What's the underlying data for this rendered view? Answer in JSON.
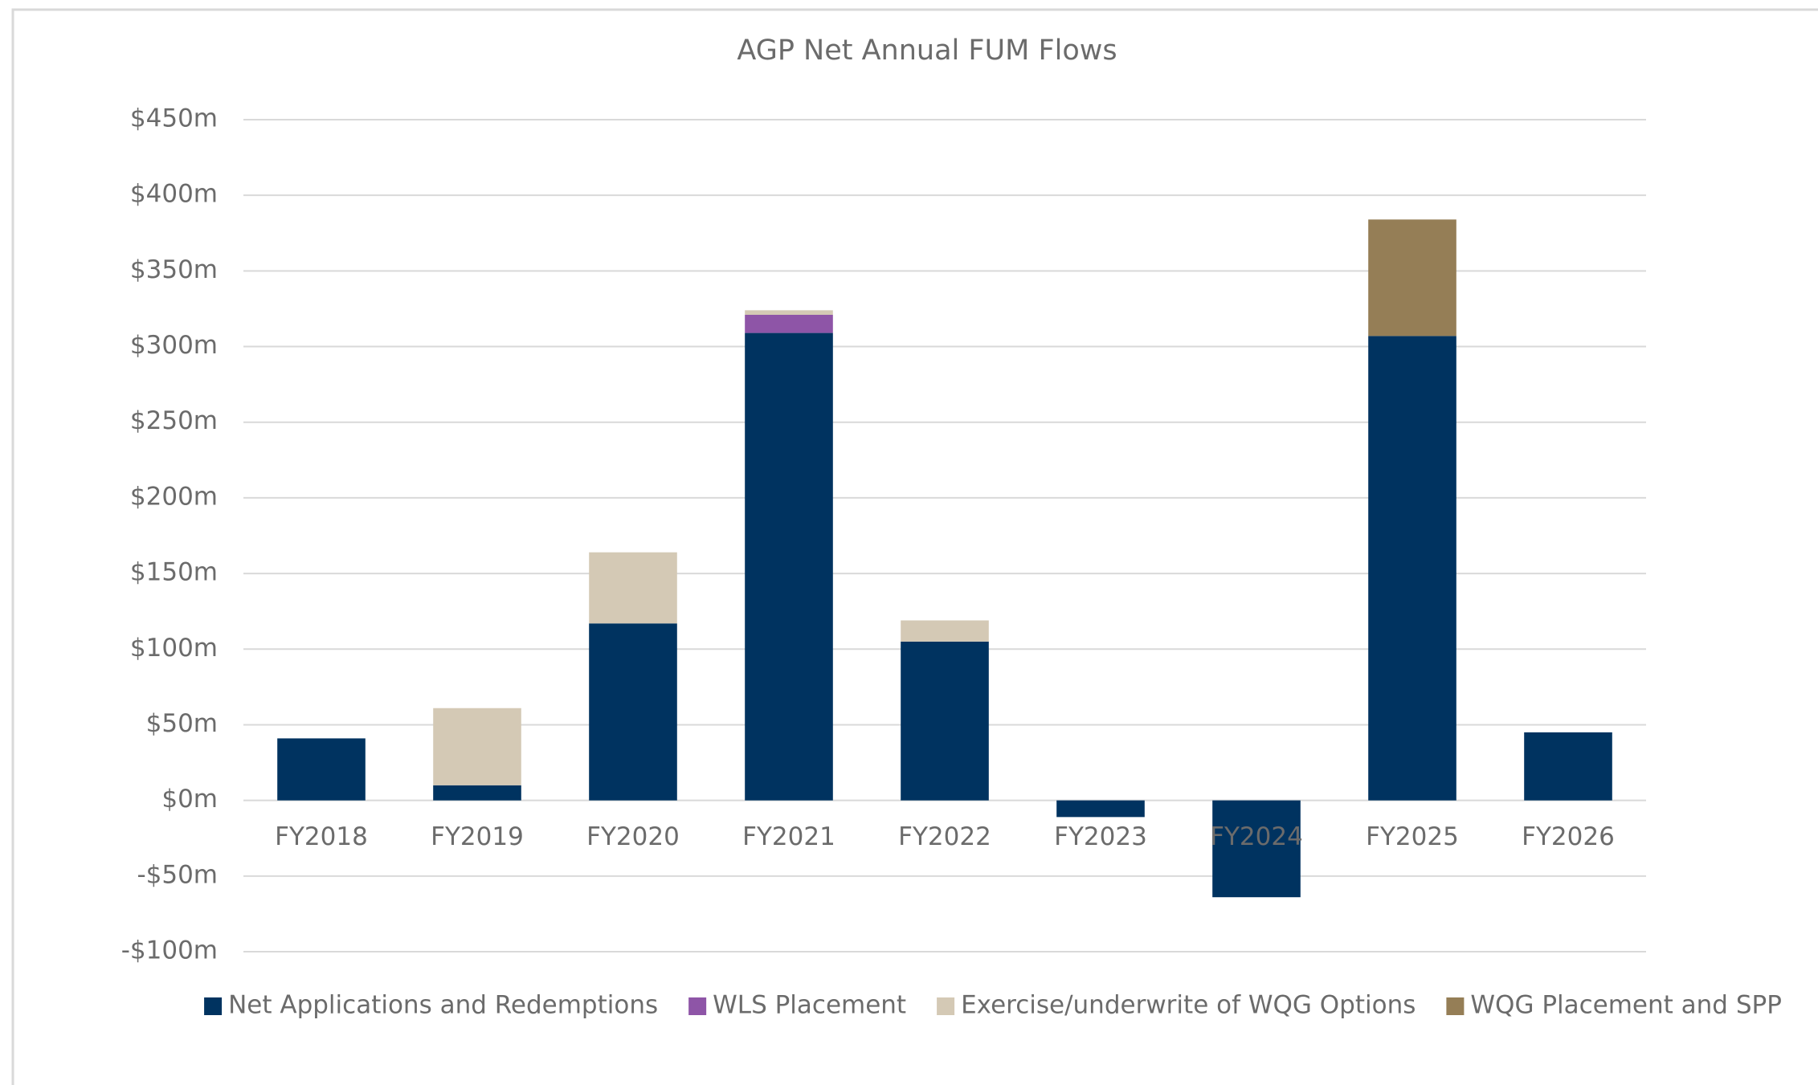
{
  "chart_data": {
    "type": "stacked_bar",
    "title": "AGP Net Annual FUM Flows",
    "categories": [
      "FY2018",
      "FY2019",
      "FY2020",
      "FY2021",
      "FY2022",
      "FY2023",
      "FY2024",
      "FY2025",
      "FY2026"
    ],
    "series": [
      {
        "name": "Net Applications and Redemptions",
        "color": "#003360",
        "values": [
          41,
          10,
          117,
          309,
          105,
          -11,
          -64,
          307,
          45
        ]
      },
      {
        "name": "WLS Placement",
        "color": "#8e55a7",
        "values": [
          0,
          0,
          0,
          12,
          0,
          0,
          0,
          0,
          0
        ]
      },
      {
        "name": "Exercise/underwrite of WQG Options",
        "color": "#d4c9b5",
        "values": [
          0,
          51,
          47,
          3,
          14,
          0,
          0,
          0,
          0
        ]
      },
      {
        "name": "WQG Placement and SPP",
        "color": "#957e56",
        "values": [
          0,
          0,
          0,
          0,
          0,
          0,
          0,
          77,
          0
        ]
      }
    ],
    "ylim": [
      -100,
      450
    ],
    "yticks": [
      {
        "value": -100,
        "label": "-$100m"
      },
      {
        "value": -50,
        "label": "-$50m"
      },
      {
        "value": 0,
        "label": "$0m"
      },
      {
        "value": 50,
        "label": "$50m"
      },
      {
        "value": 100,
        "label": "$100m"
      },
      {
        "value": 150,
        "label": "$150m"
      },
      {
        "value": 200,
        "label": "$200m"
      },
      {
        "value": 250,
        "label": "$250m"
      },
      {
        "value": 300,
        "label": "$300m"
      },
      {
        "value": 350,
        "label": "$350m"
      },
      {
        "value": 400,
        "label": "$400m"
      },
      {
        "value": 450,
        "label": "$450m"
      }
    ],
    "grid": true,
    "legend": "bottom"
  }
}
